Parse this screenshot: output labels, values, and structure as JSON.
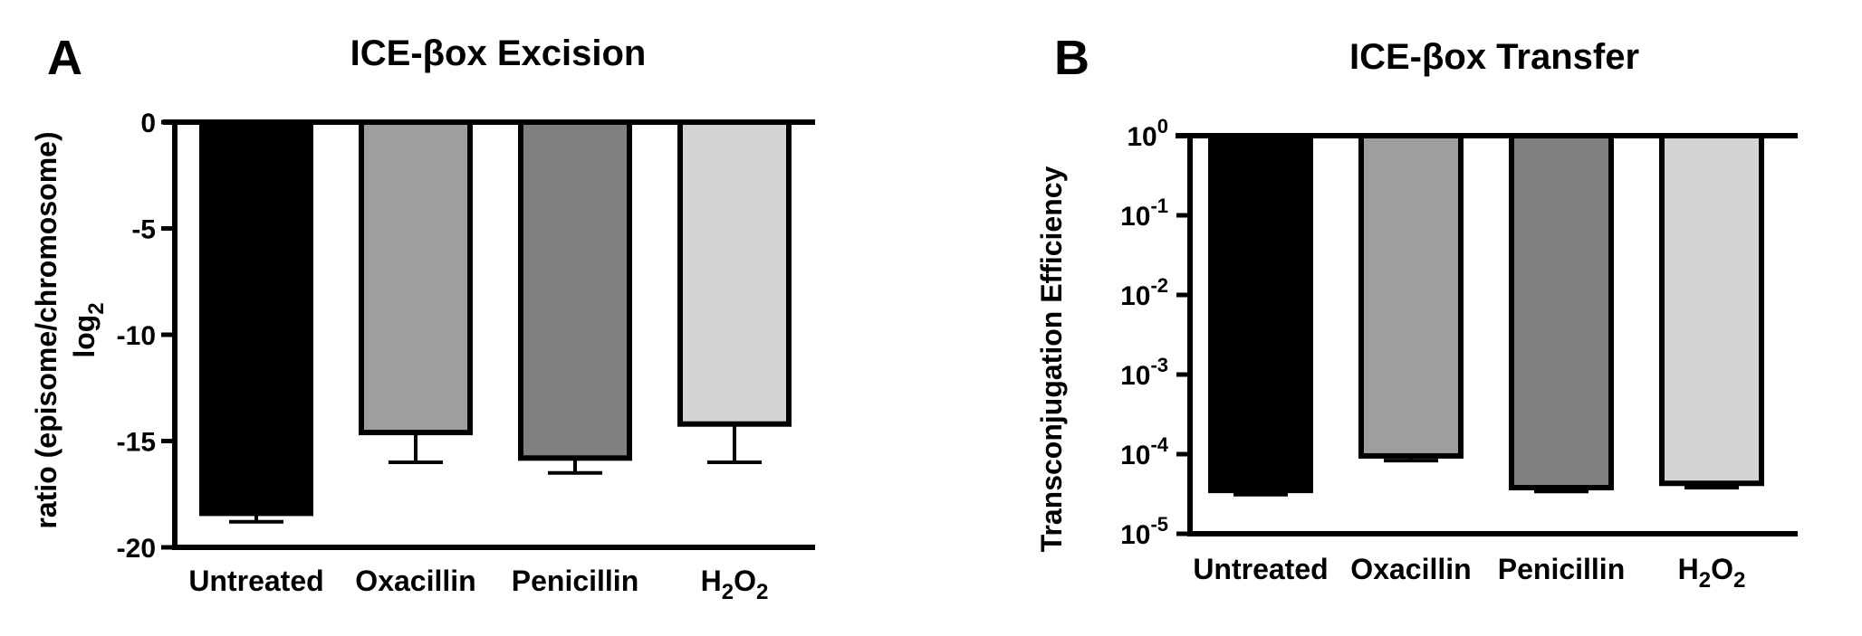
{
  "chart_data": [
    {
      "panel_label": "A",
      "type": "bar",
      "title": "ICE-βox Excision",
      "ylabel_line1": "ratio (episome/chromosome)",
      "ylabel_line2_base": "log",
      "ylabel_line2_sub": "2",
      "categories": [
        {
          "base": "Untreated",
          "parts": []
        },
        {
          "base": "Oxacillin",
          "parts": []
        },
        {
          "base": "Penicillin",
          "parts": []
        },
        {
          "base": "",
          "parts": [
            {
              "t": "H",
              "sub": false
            },
            {
              "t": "2",
              "sub": true
            },
            {
              "t": "O",
              "sub": false
            },
            {
              "t": "2",
              "sub": true
            }
          ]
        }
      ],
      "values": [
        -18.4,
        -14.6,
        -15.8,
        -14.2
      ],
      "errors": [
        0.4,
        1.4,
        0.7,
        1.8
      ],
      "colors": [
        "#000000",
        "#9e9e9e",
        "#808080",
        "#d4d4d4"
      ],
      "scale": "linear",
      "ylim": [
        -20,
        0
      ],
      "yticks": [
        "0",
        "-5",
        "-10",
        "-15",
        "-20"
      ],
      "ytick_values": [
        0,
        -5,
        -10,
        -15,
        -20
      ]
    },
    {
      "panel_label": "B",
      "type": "bar",
      "title": "ICE-βox Transfer",
      "ylabel": "Transconjugation Efficiency",
      "categories": [
        {
          "base": "Untreated",
          "parts": []
        },
        {
          "base": "Oxacillin",
          "parts": []
        },
        {
          "base": "Penicillin",
          "parts": []
        },
        {
          "base": "",
          "parts": [
            {
              "t": "H",
              "sub": false
            },
            {
              "t": "2",
              "sub": true
            },
            {
              "t": "O",
              "sub": false
            },
            {
              "t": "2",
              "sub": true
            }
          ]
        }
      ],
      "values": [
        3.5e-05,
        9.5e-05,
        3.8e-05,
        4.3e-05
      ],
      "errors": [
        4e-06,
        1.2e-05,
        4e-06,
        5e-06
      ],
      "colors": [
        "#000000",
        "#9e9e9e",
        "#808080",
        "#d4d4d4"
      ],
      "scale": "log10",
      "ylim": [
        1e-05,
        1
      ],
      "yticks": [
        {
          "base": "10",
          "exp": "0"
        },
        {
          "base": "10",
          "exp": "-1"
        },
        {
          "base": "10",
          "exp": "-2"
        },
        {
          "base": "10",
          "exp": "-3"
        },
        {
          "base": "10",
          "exp": "-4"
        },
        {
          "base": "10",
          "exp": "-5"
        }
      ],
      "ytick_values": [
        1,
        0.1,
        0.01,
        0.001,
        0.0001,
        1e-05
      ]
    }
  ]
}
